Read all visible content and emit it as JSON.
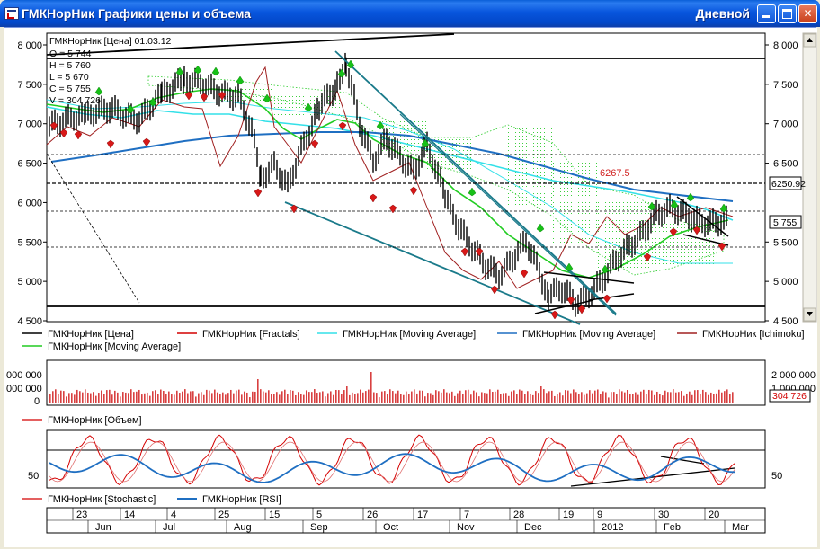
{
  "window": {
    "title": "ГМКНорНик Графики цены и объема",
    "period": "Дневной",
    "buttons": {
      "minimize": "minimize",
      "maximize": "maximize",
      "close": "✕"
    }
  },
  "price_panel": {
    "info": {
      "name_date": "ГМКНорНик [Цена] 01.03.12",
      "open": "O = 5 744",
      "high": "H = 5 760",
      "low": "L = 5 670",
      "close": "C = 5 755",
      "volume": "V = 304 726"
    },
    "y_ticks": [
      "8 000",
      "7 500",
      "7 000",
      "6 500",
      "6 000",
      "5 500",
      "5 000",
      "4 500"
    ],
    "right_ticks_top": [
      "8 000",
      "7 500",
      "7 000",
      "6 500"
    ],
    "right_ticks_bottom": [
      "5 500",
      "5 000",
      "4 500"
    ],
    "price_box": "6250.92",
    "last_price_box": "5 755",
    "level_annotation": "6267.5",
    "legend": [
      {
        "name": "ГМКНорНик [Цена]",
        "color": "#000000"
      },
      {
        "name": "ГМКНорНик [Fractals]",
        "color": "#d40000"
      },
      {
        "name": "ГМКНорНик [Moving Average]",
        "color": "#33e0e8"
      },
      {
        "name": "ГМКНорНик [Moving Average]",
        "color": "#1f6fc2"
      },
      {
        "name": "ГМКНорНик [Ichimoku]",
        "color": "#a02020"
      },
      {
        "name": "ГМКНорНик [Moving Average]",
        "color": "#22cc22"
      }
    ]
  },
  "volume_panel": {
    "y_ticks": [
      "000 000",
      "000 000",
      "0"
    ],
    "right_ticks": [
      "2 000 000",
      "1 000 000"
    ],
    "last_volume": "304 726",
    "legend": [
      {
        "name": "ГМКНорНик [Объем]",
        "color": "#d40000"
      }
    ]
  },
  "oscillator_panel": {
    "y_tick": "50",
    "right_tick": "50",
    "legend": [
      {
        "name": "ГМКНорНик [Stochastic]",
        "color": "#d40000"
      },
      {
        "name": "ГМКНорНик [RSI]",
        "color": "#1f6fc2"
      }
    ]
  },
  "date_axis": {
    "days": [
      "23",
      "14",
      "4",
      "25",
      "15",
      "5",
      "26",
      "17",
      "7",
      "28",
      "19",
      "9",
      "30",
      "20"
    ],
    "months": [
      "Jun",
      "Jul",
      "Aug",
      "Sep",
      "Oct",
      "Nov",
      "Dec",
      "2012",
      "Feb",
      "Mar"
    ]
  }
}
